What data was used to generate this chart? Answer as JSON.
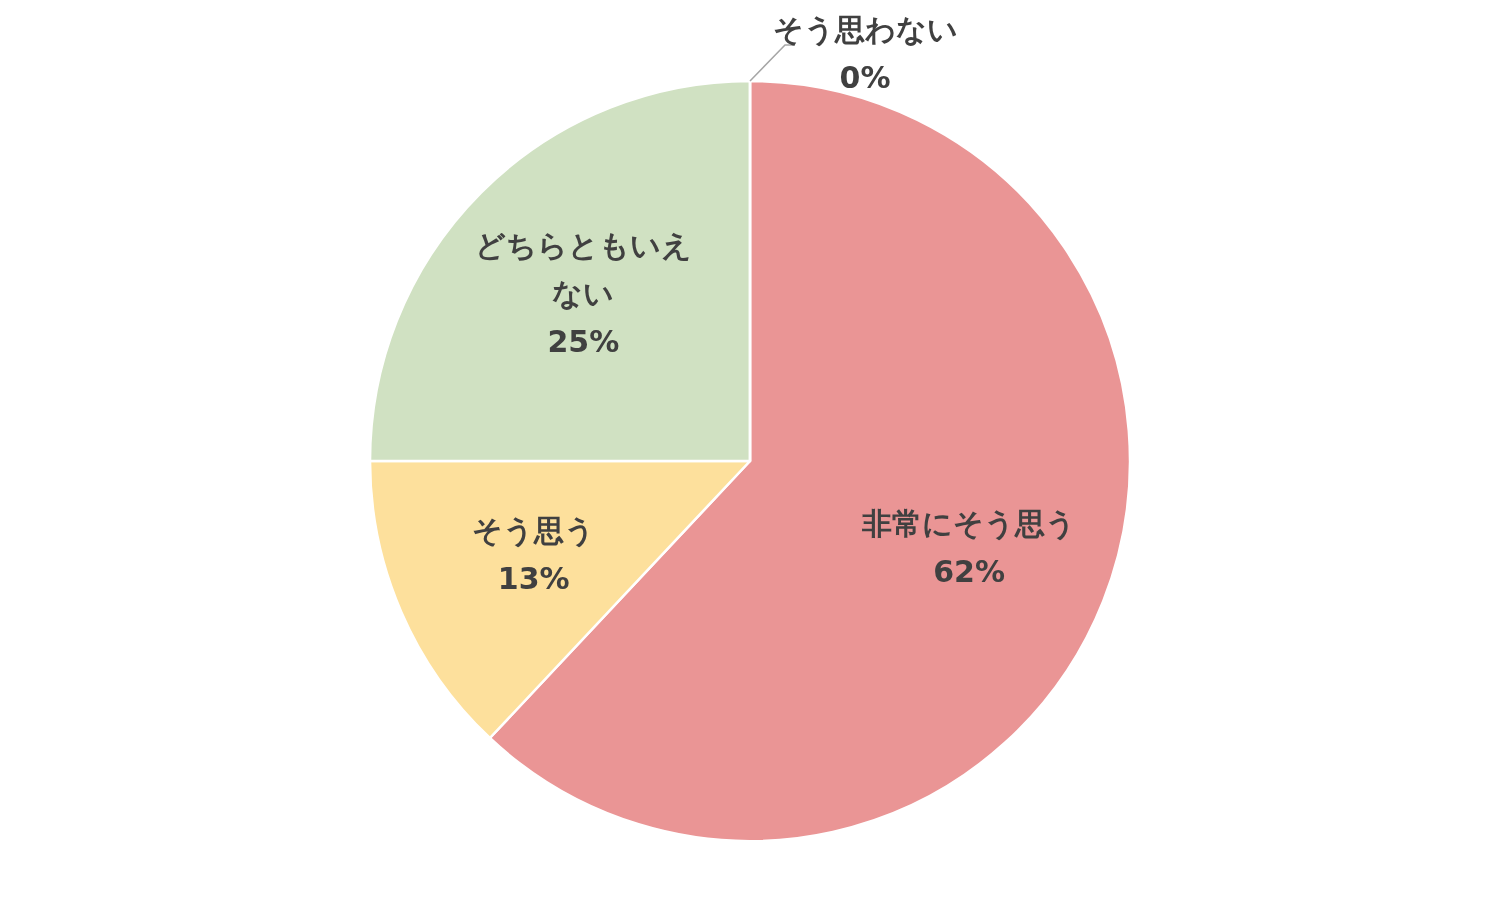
{
  "chart_data": {
    "type": "pie",
    "categories": [
      "非常にそう思う",
      "そう思う",
      "どちらともいえない",
      "そう思わない"
    ],
    "values": [
      62,
      13,
      25,
      0
    ],
    "colors": [
      "#ea9595",
      "#fde09c",
      "#d0e1c2",
      "#bfbfbf"
    ],
    "value_labels": [
      "62%",
      "13%",
      "25%",
      "0%"
    ]
  }
}
